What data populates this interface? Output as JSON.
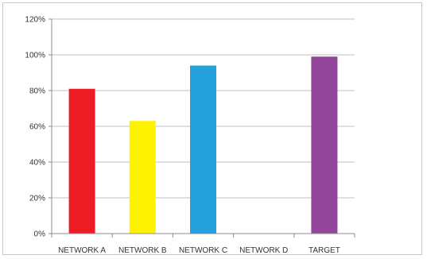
{
  "chart_data": {
    "type": "bar",
    "title": "",
    "xlabel": "",
    "ylabel": "",
    "categories": [
      "NETWORK A",
      "NETWORK B",
      "NETWORK C",
      "NETWORK D",
      "TARGET"
    ],
    "values": [
      0.81,
      0.63,
      0.94,
      0,
      0.99
    ],
    "colors": [
      "#ee1c25",
      "#fff200",
      "#24a0dc",
      "#cccccc",
      "#93469a"
    ],
    "ylim": [
      0,
      1.2
    ],
    "yticks": [
      0,
      0.2,
      0.4,
      0.6,
      0.8,
      1.0,
      1.2
    ],
    "ytick_labels": [
      "0%",
      "20%",
      "40%",
      "60%",
      "80%",
      "100%",
      "120%"
    ],
    "grid": true,
    "legend": "none"
  }
}
